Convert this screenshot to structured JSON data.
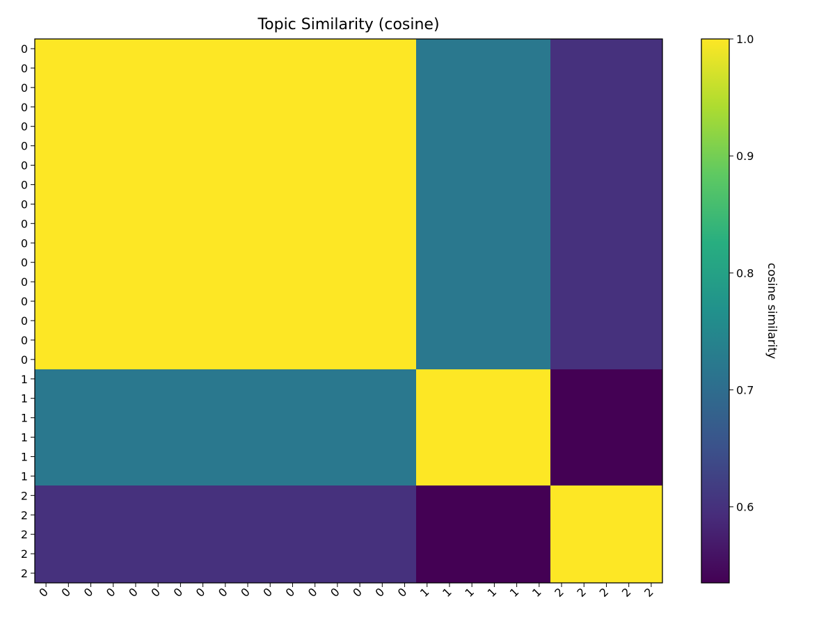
{
  "chart_data": {
    "type": "heatmap",
    "title": "Topic Similarity (cosine)",
    "x_tick_labels": [
      "0",
      "0",
      "0",
      "0",
      "0",
      "0",
      "0",
      "0",
      "0",
      "0",
      "0",
      "0",
      "0",
      "0",
      "0",
      "0",
      "0",
      "1",
      "1",
      "1",
      "1",
      "1",
      "1",
      "2",
      "2",
      "2",
      "2",
      "2"
    ],
    "y_tick_labels": [
      "0",
      "0",
      "0",
      "0",
      "0",
      "0",
      "0",
      "0",
      "0",
      "0",
      "0",
      "0",
      "0",
      "0",
      "0",
      "0",
      "0",
      "1",
      "1",
      "1",
      "1",
      "1",
      "1",
      "2",
      "2",
      "2",
      "2",
      "2"
    ],
    "topic_groups": [
      {
        "label": "0",
        "count": 17
      },
      {
        "label": "1",
        "count": 6
      },
      {
        "label": "2",
        "count": 5
      }
    ],
    "group_similarity": [
      [
        1.0,
        0.72,
        0.6
      ],
      [
        0.72,
        1.0,
        0.535
      ],
      [
        0.6,
        0.535,
        1.0
      ]
    ],
    "colorbar": {
      "label": "cosine similarity",
      "range": [
        0.535,
        1.0
      ],
      "ticks": [
        0.6,
        0.7,
        0.8,
        0.9,
        1.0
      ],
      "tick_labels": [
        "0.6",
        "0.7",
        "0.8",
        "0.9",
        "1.0"
      ],
      "colormap": "viridis"
    }
  }
}
